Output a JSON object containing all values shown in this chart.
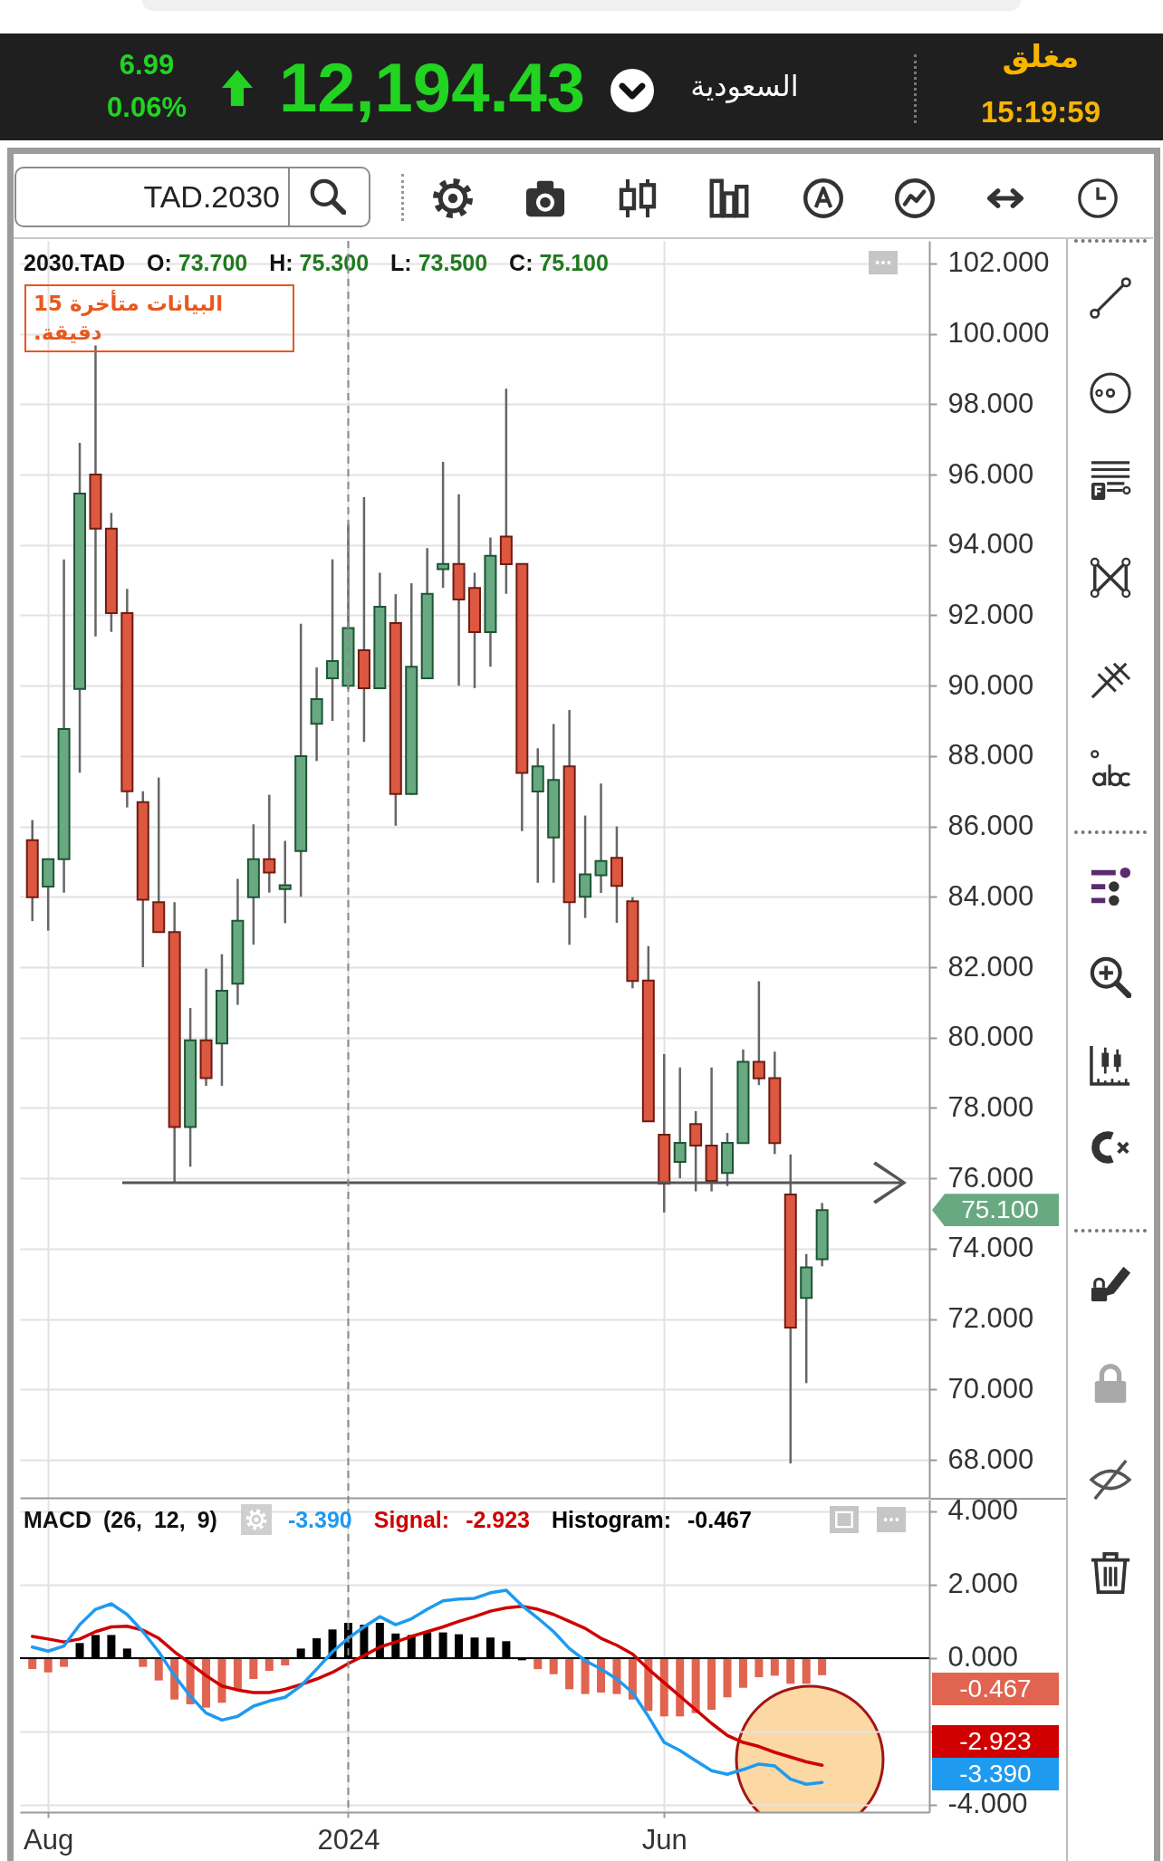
{
  "chart_data": [
    {
      "type": "other",
      "annotations": [
        "مغلق",
        "15:19:59",
        "السعودية",
        "12,194.43",
        "6.99",
        "0.06%",
        "TAD.2030"
      ]
    },
    {
      "type": "candlestick",
      "title": "2030.TAD",
      "subtitle": "البيانات متأخرة 15 دقيقة.",
      "categories": [
        null,
        null,
        null,
        null,
        null,
        null,
        null,
        null,
        null,
        null,
        null,
        null,
        null,
        null,
        null,
        null,
        null,
        null,
        null,
        null,
        null,
        null,
        null,
        null,
        null,
        null,
        null,
        null,
        null,
        null,
        null,
        null,
        null,
        null,
        null,
        null,
        null,
        null,
        null,
        null,
        null,
        null,
        null,
        null,
        null,
        null,
        null,
        null,
        null,
        null,
        null,
        null,
        null,
        null,
        null,
        null,
        null
      ],
      "ohlc": [
        [
          85.61,
          86.18,
          83.31,
          83.99
        ],
        [
          84.29,
          85.07,
          83.04,
          85.07
        ],
        [
          85.07,
          93.59,
          84.12,
          88.77
        ],
        [
          89.91,
          96.9,
          87.53,
          95.46
        ],
        [
          96.0,
          99.67,
          91.4,
          94.46
        ],
        [
          94.46,
          94.91,
          91.53,
          92.06
        ],
        [
          92.06,
          92.75,
          86.54,
          87.0
        ],
        [
          86.69,
          87.0,
          82.0,
          83.92
        ],
        [
          83.85,
          87.39,
          83.0,
          83.0
        ],
        [
          83.0,
          83.85,
          75.9,
          77.46
        ],
        [
          77.46,
          80.84,
          76.33,
          79.92
        ],
        [
          79.92,
          81.96,
          78.63,
          78.85
        ],
        [
          79.83,
          82.37,
          78.63,
          81.33
        ],
        [
          81.53,
          84.51,
          80.93,
          83.32
        ],
        [
          83.99,
          86.06,
          82.64,
          85.07
        ],
        [
          85.07,
          86.9,
          84.12,
          84.69
        ],
        [
          84.22,
          85.59,
          83.25,
          84.33
        ],
        [
          85.3,
          91.76,
          84.0,
          88.0
        ],
        [
          88.92,
          90.52,
          87.86,
          89.62
        ],
        [
          90.21,
          93.59,
          89.0,
          90.7
        ],
        [
          90.0,
          94.58,
          89.9,
          91.64
        ],
        [
          91.01,
          95.36,
          88.4,
          89.93
        ],
        [
          89.93,
          93.21,
          89.9,
          92.24
        ],
        [
          91.78,
          92.6,
          86.02,
          86.92
        ],
        [
          86.92,
          92.91,
          86.9,
          90.54
        ],
        [
          90.21,
          93.91,
          90.2,
          92.61
        ],
        [
          93.31,
          96.36,
          92.78,
          93.46
        ],
        [
          93.46,
          95.44,
          90.0,
          92.45
        ],
        [
          92.78,
          93.21,
          89.93,
          91.52
        ],
        [
          91.52,
          94.21,
          90.54,
          93.69
        ],
        [
          94.24,
          98.44,
          92.61,
          93.45
        ],
        [
          93.46,
          93.46,
          85.87,
          87.52
        ],
        [
          86.99,
          88.22,
          84.4,
          87.71
        ],
        [
          85.69,
          88.91,
          84.4,
          87.32
        ],
        [
          87.71,
          89.31,
          82.64,
          83.85
        ],
        [
          84.0,
          86.31,
          83.4,
          84.64
        ],
        [
          84.61,
          87.22,
          84.11,
          85.02
        ],
        [
          85.11,
          86.0,
          83.26,
          84.31
        ],
        [
          83.87,
          83.99,
          81.4,
          81.61
        ],
        [
          81.62,
          82.6,
          77.6,
          77.62
        ],
        [
          77.24,
          79.53,
          75.03,
          75.85
        ],
        [
          76.47,
          79.15,
          76.0,
          77.01
        ],
        [
          77.54,
          77.91,
          75.63,
          76.93
        ],
        [
          76.93,
          79.15,
          75.63,
          75.93
        ],
        [
          76.15,
          77.29,
          75.78,
          77.01
        ],
        [
          77.0,
          79.66,
          77.0,
          79.31
        ],
        [
          79.31,
          81.6,
          78.65,
          78.84
        ],
        [
          78.85,
          79.6,
          76.69,
          77.0
        ],
        [
          75.54,
          76.68,
          67.9,
          71.76
        ],
        [
          72.6,
          73.85,
          70.18,
          73.47
        ],
        [
          73.7,
          75.3,
          73.5,
          75.1
        ],
        null,
        null,
        null,
        null,
        null,
        null
      ],
      "colors": [
        "#dc5840",
        "#68a982",
        "#68a982",
        "#68a982",
        "#dc5840",
        "#dc5840",
        "#dc5840",
        "#dc5840",
        "#dc5840",
        "#dc5840",
        "#68a982",
        "#dc5840",
        "#68a982",
        "#68a982",
        "#68a982",
        "#dc5840",
        "#68a982",
        "#68a982",
        "#68a982",
        "#68a982",
        "#68a982",
        "#dc5840",
        "#68a982",
        "#dc5840",
        "#68a982",
        "#68a982",
        "#68a982",
        "#dc5840",
        "#dc5840",
        "#68a982",
        "#dc5840",
        "#dc5840",
        "#68a982",
        "#68a982",
        "#dc5840",
        "#68a982",
        "#68a982",
        "#dc5840",
        "#dc5840",
        "#dc5840",
        "#dc5840",
        "#68a982",
        "#dc5840",
        "#dc5840",
        "#68a982",
        "#68a982",
        "#dc5840",
        "#dc5840",
        "#dc5840",
        "#68a982",
        "#68a982",
        null,
        null,
        null,
        null,
        null,
        null
      ],
      "ylim": [
        66.92,
        102.64
      ],
      "yticks": [
        {
          "value": 68,
          "label": "68.000"
        },
        {
          "value": 70,
          "label": "70.000"
        },
        {
          "value": 72,
          "label": "72.000"
        },
        {
          "value": 74,
          "label": "74.000"
        },
        {
          "value": 76,
          "label": "76.000"
        },
        {
          "value": 78,
          "label": "78.000"
        },
        {
          "value": 80,
          "label": "80.000"
        },
        {
          "value": 82,
          "label": "82.000"
        },
        {
          "value": 84,
          "label": "84.000"
        },
        {
          "value": 86,
          "label": "86.000"
        },
        {
          "value": 88,
          "label": "88.000"
        },
        {
          "value": 90,
          "label": "90.000"
        },
        {
          "value": 92,
          "label": "92.000"
        },
        {
          "value": 94,
          "label": "94.000"
        },
        {
          "value": 96,
          "label": "96.000"
        },
        {
          "value": 98,
          "label": "98.000"
        },
        {
          "value": 100,
          "label": "100.000"
        },
        {
          "value": 102,
          "label": "102.000"
        }
      ],
      "grid": true,
      "annotations": [
        "O: 73.700",
        "H: 75.300",
        "L: 73.500",
        "C: 75.100",
        "75.100"
      ]
    },
    {
      "type": "line",
      "title": "MACD (26, 12, 9)",
      "legend": "top",
      "categories": [
        null,
        "Aug",
        null,
        null,
        null,
        null,
        null,
        null,
        null,
        null,
        null,
        null,
        null,
        null,
        null,
        null,
        null,
        null,
        null,
        null,
        "2024",
        null,
        null,
        null,
        null,
        null,
        null,
        null,
        null,
        null,
        null,
        null,
        null,
        null,
        null,
        null,
        null,
        null,
        null,
        null,
        "Jun",
        null,
        null,
        null,
        null,
        null,
        null,
        null,
        null,
        null,
        null,
        null,
        null,
        null,
        null,
        null,
        null
      ],
      "series": [
        {
          "color": "#1e9af0",
          "values": [
            0.3,
            0.19,
            0.33,
            0.91,
            1.33,
            1.48,
            1.19,
            0.72,
            0.17,
            -0.48,
            -1.04,
            -1.5,
            -1.69,
            -1.59,
            -1.31,
            -1.17,
            -1.07,
            -0.76,
            -0.3,
            0.17,
            0.54,
            0.85,
            1.13,
            0.91,
            1.07,
            1.33,
            1.56,
            1.61,
            1.63,
            1.78,
            1.85,
            1.43,
            1.09,
            0.72,
            0.26,
            -0.07,
            -0.3,
            -0.57,
            -0.94,
            -1.59,
            -2.3,
            -2.52,
            -2.8,
            -3.07,
            -3.17,
            -3.04,
            -2.89,
            -2.94,
            -3.3,
            -3.44,
            -3.39,
            null,
            null,
            null,
            null,
            null,
            null
          ]
        },
        {
          "name": "Signal:",
          "color": "#d00000",
          "values": [
            0.59,
            0.52,
            0.44,
            0.52,
            0.72,
            0.85,
            0.87,
            0.76,
            0.54,
            0.17,
            -0.15,
            -0.48,
            -0.76,
            -0.87,
            -0.94,
            -0.94,
            -0.85,
            -0.72,
            -0.57,
            -0.39,
            -0.15,
            0.07,
            0.3,
            0.44,
            0.59,
            0.72,
            0.85,
            1.0,
            1.13,
            1.28,
            1.37,
            1.41,
            1.33,
            1.19,
            1.0,
            0.81,
            0.54,
            0.35,
            0.11,
            -0.3,
            -0.67,
            -1.04,
            -1.41,
            -1.78,
            -2.11,
            -2.3,
            -2.41,
            -2.57,
            -2.7,
            -2.83,
            -2.923,
            null,
            null,
            null,
            null,
            null,
            null
          ]
        },
        {
          "name": "Histogram:",
          "type": "bar",
          "colors": [
            "#e0644f",
            "#e0644f",
            "#e0644f",
            "#000000",
            "#000000",
            "#000000",
            "#000000",
            "#e0644f",
            "#e0644f",
            "#e0644f",
            "#e0644f",
            "#e0644f",
            "#e0644f",
            "#e0644f",
            "#e0644f",
            "#e0644f",
            "#e0644f",
            "#000000",
            "#000000",
            "#000000",
            "#000000",
            "#000000",
            "#000000",
            "#000000",
            "#000000",
            "#000000",
            "#000000",
            "#000000",
            "#000000",
            "#000000",
            "#000000",
            "#000000",
            "#e0644f",
            "#e0644f",
            "#e0644f",
            "#e0644f",
            "#e0644f",
            "#e0644f",
            "#e0644f",
            "#e0644f",
            "#e0644f",
            "#e0644f",
            "#e0644f",
            "#e0644f",
            "#e0644f",
            "#e0644f",
            "#e0644f",
            "#e0644f",
            "#e0644f",
            "#e0644f",
            "#e0644f",
            null,
            null,
            null,
            null,
            null,
            null
          ],
          "values": [
            -0.3,
            -0.39,
            -0.24,
            0.41,
            0.63,
            0.63,
            0.26,
            -0.24,
            -0.61,
            -1.13,
            -1.26,
            -1.35,
            -1.22,
            -0.89,
            -0.57,
            -0.35,
            -0.2,
            0.26,
            0.54,
            0.78,
            0.96,
            0.91,
            0.96,
            0.67,
            0.63,
            0.7,
            0.7,
            0.65,
            0.56,
            0.56,
            0.46,
            -0.06,
            -0.3,
            -0.44,
            -0.85,
            -0.98,
            -0.94,
            -0.98,
            -1.13,
            -1.44,
            -1.59,
            -1.59,
            -1.5,
            -1.41,
            -1.07,
            -0.81,
            -0.52,
            -0.48,
            -0.7,
            -0.7,
            -0.467,
            null,
            null,
            null,
            null,
            null,
            null
          ]
        }
      ],
      "ylim": [
        -4.2,
        4.32
      ],
      "yticks": [
        {
          "value": -4,
          "label": "-4.000"
        },
        {
          "value": -2,
          "label": null
        },
        {
          "value": 0,
          "label": "0.000"
        },
        {
          "value": 2,
          "label": "2.000"
        },
        {
          "value": 4,
          "label": "4.000"
        }
      ],
      "grid": true,
      "ref_lines": [
        {
          "axis": "x",
          "value": "2024",
          "line_style": "dashed",
          "color": "#8a8a8a"
        },
        {
          "axis": "y",
          "value": 0,
          "color": "#000000"
        }
      ],
      "annotations": [
        "-3.390",
        "-2.923",
        "-0.467"
      ]
    }
  ]
}
